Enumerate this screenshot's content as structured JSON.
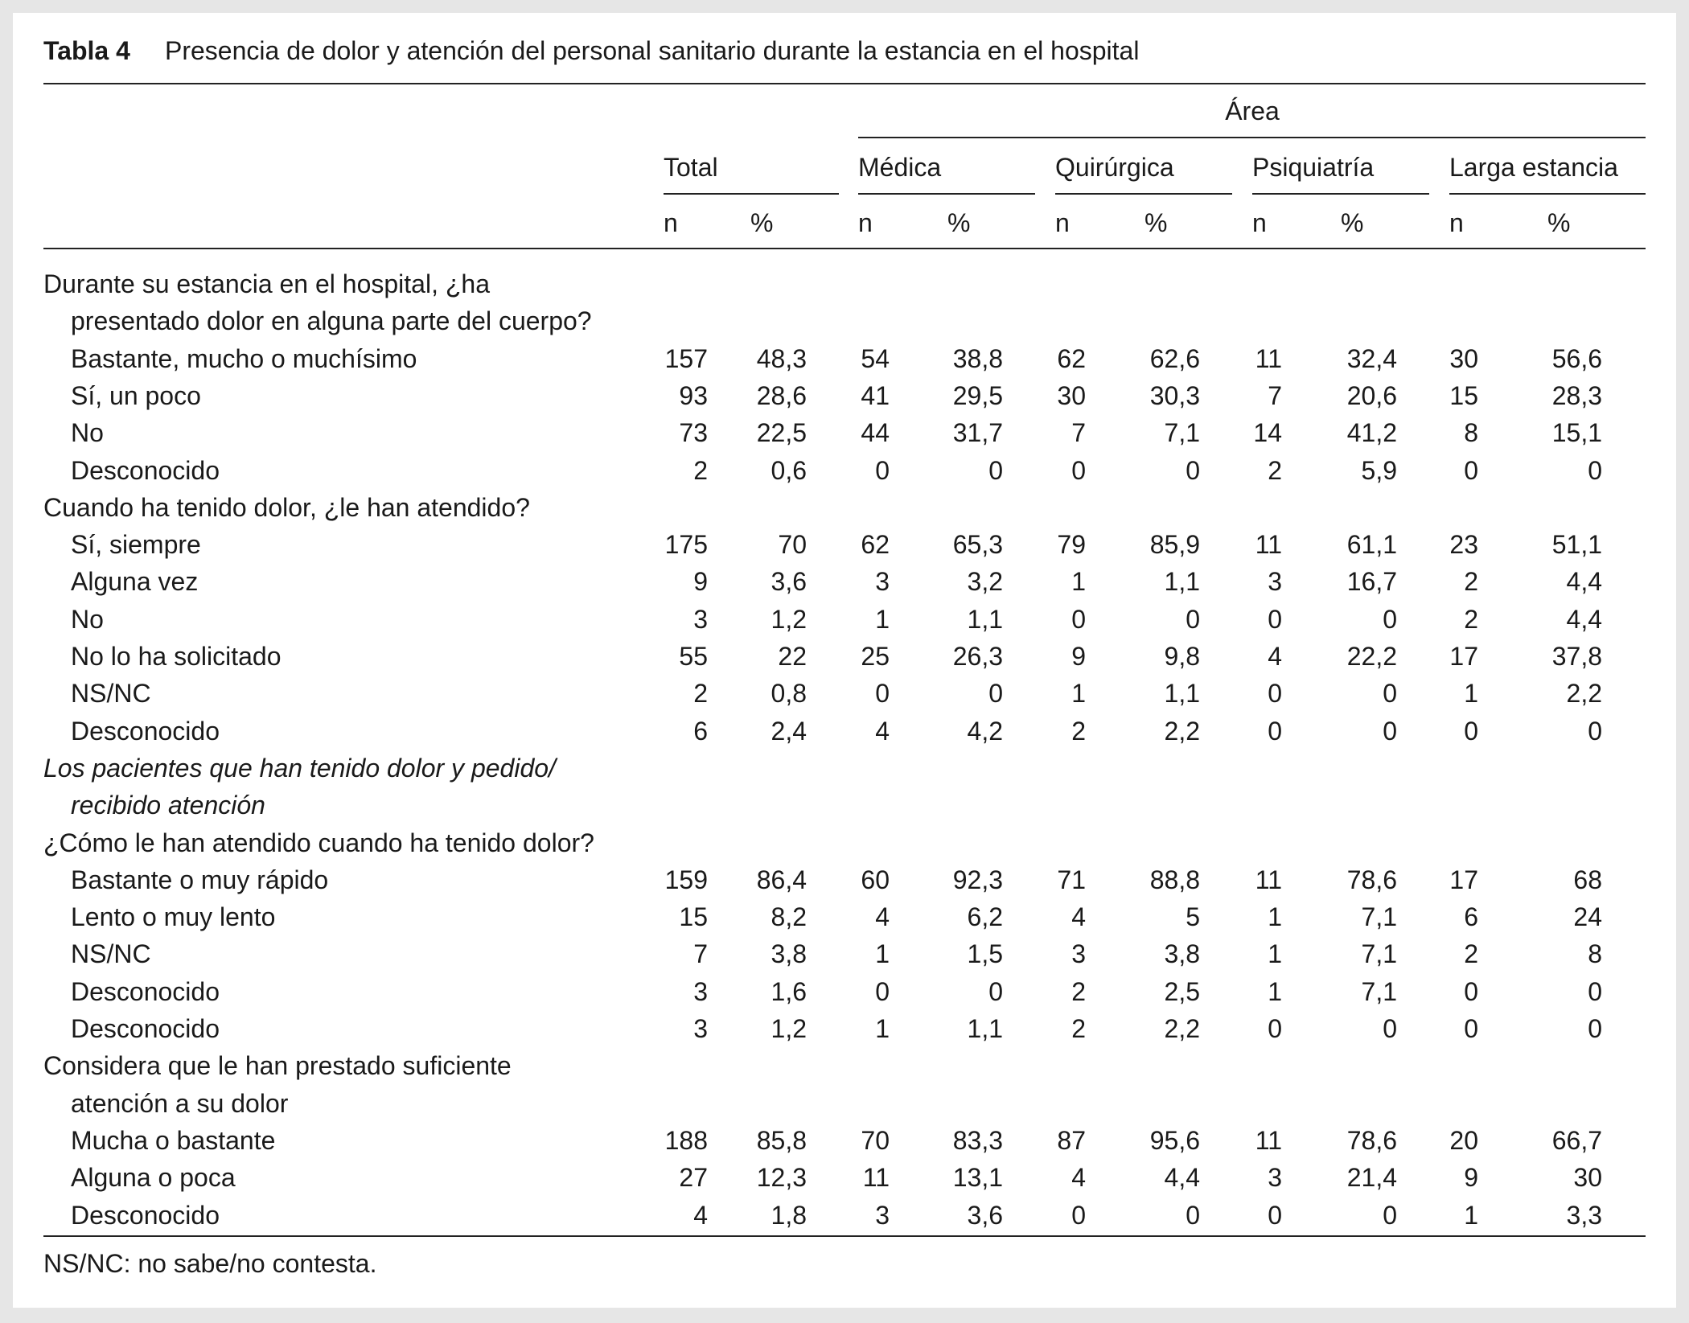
{
  "title": {
    "label": "Tabla 4",
    "text": "Presencia de dolor y atención del personal sanitario durante la estancia en el hospital"
  },
  "header": {
    "area": "Área",
    "groups": [
      "Total",
      "Médica",
      "Quirúrgica",
      "Psiquiatría",
      "Larga estancia"
    ],
    "n": "n",
    "pct": "%"
  },
  "sections": [
    {
      "heading": [
        "Durante su estancia en el hospital, ¿ha",
        "presentado dolor en alguna parte del cuerpo?"
      ],
      "items": [
        {
          "label": "Bastante, mucho o muchísimo",
          "cells": [
            "157",
            "48,3",
            "54",
            "38,8",
            "62",
            "62,6",
            "11",
            "32,4",
            "30",
            "56,6"
          ]
        },
        {
          "label": "Sí, un poco",
          "cells": [
            "93",
            "28,6",
            "41",
            "29,5",
            "30",
            "30,3",
            "7",
            "20,6",
            "15",
            "28,3"
          ]
        },
        {
          "label": "No",
          "cells": [
            "73",
            "22,5",
            "44",
            "31,7",
            "7",
            "7,1",
            "14",
            "41,2",
            "8",
            "15,1"
          ]
        },
        {
          "label": "Desconocido",
          "cells": [
            "2",
            "0,6",
            "0",
            "0",
            "0",
            "0",
            "2",
            "5,9",
            "0",
            "0"
          ]
        }
      ]
    },
    {
      "heading": [
        "Cuando ha tenido dolor, ¿le han atendido?"
      ],
      "items": [
        {
          "label": "Sí, siempre",
          "cells": [
            "175",
            "70",
            "62",
            "65,3",
            "79",
            "85,9",
            "11",
            "61,1",
            "23",
            "51,1"
          ]
        },
        {
          "label": "Alguna vez",
          "cells": [
            "9",
            "3,6",
            "3",
            "3,2",
            "1",
            "1,1",
            "3",
            "16,7",
            "2",
            "4,4"
          ]
        },
        {
          "label": "No",
          "cells": [
            "3",
            "1,2",
            "1",
            "1,1",
            "0",
            "0",
            "0",
            "0",
            "2",
            "4,4"
          ]
        },
        {
          "label": "No lo ha solicitado",
          "cells": [
            "55",
            "22",
            "25",
            "26,3",
            "9",
            "9,8",
            "4",
            "22,2",
            "17",
            "37,8"
          ]
        },
        {
          "label": "NS/NC",
          "cells": [
            "2",
            "0,8",
            "0",
            "0",
            "1",
            "1,1",
            "0",
            "0",
            "1",
            "2,2"
          ]
        },
        {
          "label": "Desconocido",
          "cells": [
            "6",
            "2,4",
            "4",
            "4,2",
            "2",
            "2,2",
            "0",
            "0",
            "0",
            "0"
          ]
        }
      ]
    },
    {
      "note": [
        "Los pacientes que han tenido dolor y pedido/",
        "recibido atención"
      ],
      "heading": [
        "¿Cómo le han atendido cuando ha tenido dolor?"
      ],
      "items": [
        {
          "label": "Bastante o muy rápido",
          "cells": [
            "159",
            "86,4",
            "60",
            "92,3",
            "71",
            "88,8",
            "11",
            "78,6",
            "17",
            "68"
          ]
        },
        {
          "label": "Lento o muy lento",
          "cells": [
            "15",
            "8,2",
            "4",
            "6,2",
            "4",
            "5",
            "1",
            "7,1",
            "6",
            "24"
          ]
        },
        {
          "label": "NS/NC",
          "cells": [
            "7",
            "3,8",
            "1",
            "1,5",
            "3",
            "3,8",
            "1",
            "7,1",
            "2",
            "8"
          ]
        },
        {
          "label": "Desconocido",
          "cells": [
            "3",
            "1,6",
            "0",
            "0",
            "2",
            "2,5",
            "1",
            "7,1",
            "0",
            "0"
          ]
        },
        {
          "label": "Desconocido",
          "cells": [
            "3",
            "1,2",
            "1",
            "1,1",
            "2",
            "2,2",
            "0",
            "0",
            "0",
            "0"
          ]
        }
      ]
    },
    {
      "heading": [
        "Considera que le han prestado suficiente",
        "atención a su dolor"
      ],
      "items": [
        {
          "label": "Mucha o bastante",
          "cells": [
            "188",
            "85,8",
            "70",
            "83,3",
            "87",
            "95,6",
            "11",
            "78,6",
            "20",
            "66,7"
          ]
        },
        {
          "label": "Alguna o poca",
          "cells": [
            "27",
            "12,3",
            "11",
            "13,1",
            "4",
            "4,4",
            "3",
            "21,4",
            "9",
            "30"
          ]
        },
        {
          "label": "Desconocido",
          "cells": [
            "4",
            "1,8",
            "3",
            "3,6",
            "0",
            "0",
            "0",
            "0",
            "1",
            "3,3"
          ]
        }
      ]
    }
  ],
  "footnote": "NS/NC: no sabe/no contesta."
}
